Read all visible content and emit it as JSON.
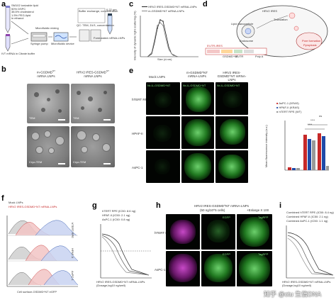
{
  "panels": {
    "a": {
      "label": "a",
      "reagents": [
        "SM102 ionizable lipid",
        "50% DSPC",
        "38.5% cholesterol",
        "1.5% PEG-lipid",
        "in ethanol"
      ],
      "step_mix": "Microfluidic mixing",
      "step_syringe": "Syringe pump",
      "step_device": "Microfluidic device",
      "step_mrna": "IVT mRNA in Citrate buffer",
      "step_tff": "Buffer exchange, concentration",
      "step_qc": "QC: TEM, DLS, concentration",
      "step_store": "Formulated mRNA-LNPs",
      "temp": "0.22 μm"
    },
    "b": {
      "label": "b",
      "col1": "m-GSDMD",
      "col1_sup": "NT",
      "col1_suffix": "mRNA LNPs",
      "col2": "HRV2 IRES-GSDMD",
      "col2_sup": "NT",
      "col2_suffix": "mRNA LNPs",
      "tiles": [
        "TEM",
        "TEM",
        "Cryo-TEM",
        "Cryo-TEM"
      ]
    },
    "c": {
      "label": "c",
      "xlabel": "Size (d.nm)",
      "ylabel": "Intensity of dynamic light scattering (%)",
      "legend": [
        "HRV2 IRES-GSDMD^NT mRNA-LNPs",
        "m-GSDMD^NT mRNA-LNPs"
      ]
    },
    "d": {
      "label": "d",
      "labels": [
        "HRV2 IRES",
        "GSDMD^NT",
        "mRNA",
        "Translation",
        "Lipid nanoparticle",
        "Endosome",
        "Pore formation",
        "Pyroptosis"
      ],
      "construct": [
        "5'UTR-IRES",
        "GSDMD^NT",
        "3'UTR",
        "Poly A"
      ]
    },
    "e": {
      "label": "e",
      "cols": [
        "Mock LNPs",
        "m-GSDMD^NT mRNA-LNPs",
        "HRV2 IRES-GSDMD^NT mRNA-LNPs"
      ],
      "rows": [
        "hTERT RPE",
        "HPAF-II",
        "AsPC-1"
      ],
      "channel": "Nr-IL-GSDMD^NT",
      "legend": [
        "AsPC-1 (KRAS)",
        "HPAF-II (KRAS)",
        "hTERT RPE (WT)"
      ],
      "ylabel": "Mean fluorescence intensity (a.u.)",
      "sig": [
        "****",
        "****",
        "ns"
      ]
    },
    "f": {
      "label": "f",
      "legend": [
        "Mock LNPs",
        "HRV2 IRES-GSDMD^NT mRNA-LNPs"
      ],
      "rows": [
        "hTERT RPE",
        "HPAF-II",
        "AsPC-1"
      ],
      "xlabel": "Cell surface-GSDMD^NT eGFP"
    },
    "g": {
      "label": "g",
      "legend": [
        "hTERT RPE (IC50: 8.6 ng)",
        "HPAF-II (IC50: 2.1 ng)",
        "AsPC-1 (IC50: 0.8 ng)"
      ],
      "ylabel": "Normalized cell viability",
      "xlabel": "HRV2 IRES-GSDMD^NT mRNA-LNPs (Dosage,log10 ng/well)"
    },
    "h": {
      "label": "h",
      "title": "HRV2 IRES-GSDMD^NT mRNA-LNPs",
      "subtitle": "(50 ng/10^5 cells)",
      "zoom": "+Enlarge X 100",
      "rows": [
        "hTERT RPE",
        "AsPC-1"
      ],
      "channel": "TagRFP",
      "channel2": "EGFP"
    },
    "i": {
      "label": "i",
      "legend": [
        "Combined hTERT RPE (IC50: 8.4 ng)",
        "Combined HPAF-II (IC50: 2.1 ng)",
        "Combined AsPC-1 (IC50: 1.1 ng)"
      ],
      "ylabel": "Normalized cell viability",
      "xlabel": "HRV2 IRES-GSDMD^NT mRNA-LNPs (Dosage,log10 ng/well)"
    }
  },
  "watermark": "知乎 @ctu 生信DNA",
  "colors": {
    "green": "#41c441",
    "magenta": "#d24ad2",
    "red": "#c62828",
    "blue": "#1f4aa8",
    "gray": "#888888"
  }
}
